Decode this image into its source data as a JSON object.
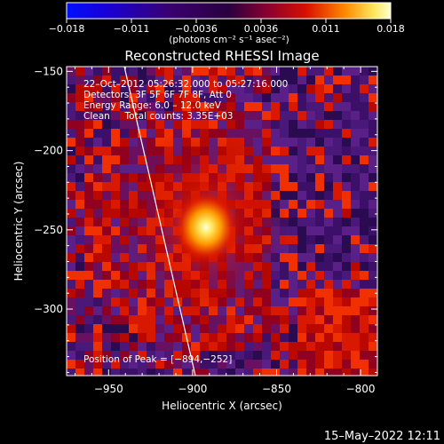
{
  "colorbar": {
    "tick_labels": [
      "−0.018",
      "−0.011",
      "−0.0036",
      "0.0036",
      "0.011",
      "0.018"
    ],
    "unit_label": "(photons cm⁻² s⁻¹ asec⁻²)",
    "colors": {
      "negative_end": "#0000ff",
      "mid": "#2a0050",
      "positive_mid": "#c80000",
      "positive_end": "#ffffc8"
    }
  },
  "plot": {
    "title": "Reconstructed RHESSI Image",
    "annotations": [
      "22–Oct–2012 05:26:32.000 to 05:27:16.000",
      "Detectors: 3F 5F 6F 7F 8F, Att 0",
      "Energy Range: 6.0 – 12.0 keV",
      "Clean     Total counts: 3.35E+03"
    ],
    "peak_text": "Position of Peak = [−894,−252]",
    "xlabel": "Heliocentric X (arcsec)",
    "ylabel": "Heliocentric Y (arcsec)",
    "xticks": [
      "−950",
      "−900",
      "−850",
      "−800"
    ],
    "yticks": [
      "−150",
      "−200",
      "−250",
      "−300"
    ],
    "xlim": [
      -975,
      -790
    ],
    "ylim": [
      -342,
      -147
    ],
    "peak": {
      "x": -894,
      "y": -252
    }
  },
  "footer": {
    "timestamp": "15–May–2022 12:11"
  }
}
